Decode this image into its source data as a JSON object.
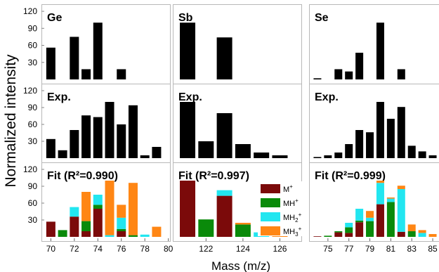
{
  "figure": {
    "ylabel": "Normalized intensity",
    "xlabel": "Mass (m/z)"
  },
  "legend": {
    "items": [
      {
        "label": "M",
        "sup": "+",
        "sub": "",
        "color": "#7b0a0a"
      },
      {
        "label": "MH",
        "sup": "+",
        "sub": "",
        "color": "#0a8a0a"
      },
      {
        "label": "MH",
        "sup": "+",
        "sub": "2",
        "color": "#22e6f0"
      },
      {
        "label": "MH",
        "sup": "+",
        "sub": "3",
        "color": "#ff8614"
      }
    ]
  },
  "chart_data": [
    {
      "type": "bar",
      "column": "Ge",
      "row": "theory",
      "label": "Ge",
      "ylim": [
        0,
        130
      ],
      "yticks": [
        30,
        60,
        90,
        120
      ],
      "xlim": [
        69.2,
        80.2
      ],
      "x": [
        70,
        71,
        72,
        73,
        74,
        75,
        76,
        77,
        78,
        79
      ],
      "values": [
        56,
        0,
        75,
        18,
        100,
        0,
        18,
        0,
        0,
        0
      ]
    },
    {
      "type": "bar",
      "column": "Ge",
      "row": "exp",
      "label": "Exp.",
      "ylim": [
        0,
        130
      ],
      "yticks": [
        30,
        60,
        90,
        120
      ],
      "xlim": [
        69.2,
        80.2
      ],
      "x": [
        70,
        71,
        72,
        73,
        74,
        75,
        76,
        77,
        78,
        79
      ],
      "values": [
        34,
        14,
        50,
        76,
        73,
        100,
        60,
        94,
        5,
        20
      ]
    },
    {
      "type": "bar",
      "column": "Ge",
      "row": "fit",
      "label": "Fit (R²=0.990)",
      "ylim": [
        0,
        130
      ],
      "yticks": [
        30,
        60,
        90,
        120
      ],
      "xlim": [
        69.2,
        80.2
      ],
      "xticks": [
        70,
        72,
        74,
        76,
        78,
        80
      ],
      "x": [
        70,
        71,
        72,
        73,
        74,
        75,
        76,
        77,
        78,
        79
      ],
      "stacked": true,
      "series": [
        {
          "name": "M+",
          "values": [
            27,
            0,
            36,
            10,
            50,
            0,
            10,
            0,
            0,
            0
          ]
        },
        {
          "name": "MH+",
          "values": [
            0,
            12,
            0,
            18,
            7,
            0,
            4,
            3,
            0,
            0
          ]
        },
        {
          "name": "MH2+",
          "values": [
            0,
            0,
            17,
            0,
            18,
            3,
            20,
            0,
            4,
            0
          ]
        },
        {
          "name": "MH3+",
          "values": [
            0,
            0,
            0,
            52,
            0,
            97,
            23,
            93,
            0,
            18
          ]
        }
      ]
    },
    {
      "type": "bar",
      "column": "Sb",
      "row": "theory",
      "label": "Sb",
      "ylim": [
        0,
        130
      ],
      "yticks": [],
      "xlim": [
        120.2,
        127.2
      ],
      "x": [
        121,
        122,
        123,
        124,
        125,
        126
      ],
      "values": [
        100,
        0,
        74,
        0,
        0,
        0
      ]
    },
    {
      "type": "bar",
      "column": "Sb",
      "row": "exp",
      "label": "Exp.",
      "ylim": [
        0,
        130
      ],
      "yticks": [],
      "xlim": [
        120.2,
        127.2
      ],
      "x": [
        121,
        122,
        123,
        124,
        125,
        126
      ],
      "values": [
        100,
        30,
        80,
        25,
        10,
        5
      ]
    },
    {
      "type": "bar",
      "column": "Sb",
      "row": "fit",
      "label": "Fit (R²=0.997)",
      "ylim": [
        0,
        130
      ],
      "yticks": [],
      "xlim": [
        120.2,
        127.2
      ],
      "xticks": [
        122,
        124,
        126
      ],
      "x": [
        121,
        122,
        123,
        124,
        125,
        126
      ],
      "stacked": true,
      "series": [
        {
          "name": "M+",
          "values": [
            100,
            0,
            73,
            0,
            0,
            0
          ]
        },
        {
          "name": "MH+",
          "values": [
            0,
            31,
            0,
            22,
            0,
            0
          ]
        },
        {
          "name": "MH2+",
          "values": [
            0,
            0,
            10,
            0,
            8,
            0
          ]
        },
        {
          "name": "MH3+",
          "values": [
            0,
            0,
            0,
            3,
            0,
            3
          ]
        }
      ]
    },
    {
      "type": "bar",
      "column": "Se",
      "row": "theory",
      "label": "Se",
      "ylim": [
        0,
        130
      ],
      "yticks": [],
      "xlim": [
        73.2,
        85.8
      ],
      "x": [
        74,
        75,
        76,
        77,
        78,
        79,
        80,
        81,
        82,
        83,
        84,
        85
      ],
      "values": [
        2,
        0,
        18,
        14,
        47,
        0,
        100,
        0,
        18,
        0,
        0,
        0
      ]
    },
    {
      "type": "bar",
      "column": "Se",
      "row": "exp",
      "label": "Exp.",
      "ylim": [
        0,
        130
      ],
      "yticks": [],
      "xlim": [
        73.2,
        85.8
      ],
      "x": [
        74,
        75,
        76,
        77,
        78,
        79,
        80,
        81,
        82,
        83,
        84,
        85
      ],
      "values": [
        2,
        5,
        10,
        25,
        50,
        46,
        100,
        70,
        91,
        22,
        12,
        5
      ]
    },
    {
      "type": "bar",
      "column": "Se",
      "row": "fit",
      "label": "Fit (R²=0.999)",
      "ylim": [
        0,
        130
      ],
      "yticks": [],
      "xlim": [
        73.2,
        85.8
      ],
      "xticks": [
        75,
        77,
        79,
        81,
        83,
        85
      ],
      "x": [
        74,
        75,
        76,
        77,
        78,
        79,
        80,
        81,
        82,
        83,
        84,
        85
      ],
      "stacked": true,
      "series": [
        {
          "name": "M+",
          "values": [
            1,
            0,
            8,
            7,
            26,
            0,
            58,
            0,
            9,
            0,
            0,
            0
          ]
        },
        {
          "name": "MH+",
          "values": [
            0,
            2,
            2,
            10,
            3,
            28,
            0,
            62,
            0,
            10,
            0,
            0
          ]
        },
        {
          "name": "MH2+",
          "values": [
            0,
            0,
            0,
            8,
            21,
            6,
            38,
            6,
            76,
            0,
            7,
            0
          ]
        },
        {
          "name": "MH3+",
          "values": [
            0,
            0,
            0,
            0,
            0,
            12,
            4,
            2,
            6,
            12,
            5,
            5
          ]
        }
      ]
    }
  ]
}
